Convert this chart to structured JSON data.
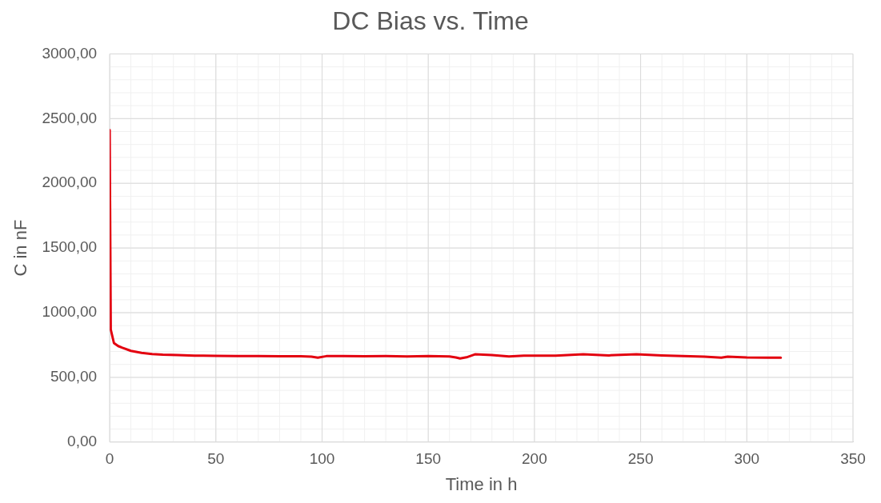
{
  "chart_data": {
    "type": "line",
    "title": "DC Bias vs. Time",
    "xlabel": "Time in h",
    "ylabel": "C in nF",
    "x": [
      0,
      0.5,
      2,
      4,
      6,
      10,
      15,
      20,
      25,
      32,
      40,
      50,
      60,
      70,
      80,
      90,
      95,
      98,
      102,
      110,
      120,
      130,
      140,
      150,
      160,
      163,
      165,
      168,
      172,
      180,
      188,
      195,
      210,
      223,
      235,
      248,
      260,
      270,
      280,
      288,
      291,
      300,
      310,
      316
    ],
    "series": [
      {
        "color": "#e3000f",
        "values": [
          2410,
          870,
          765,
          742,
          729,
          705,
          690,
          680,
          675,
          672,
          668,
          666,
          665,
          664,
          663,
          663,
          660,
          652,
          664,
          664,
          663,
          664,
          662,
          664,
          662,
          654,
          646,
          655,
          678,
          672,
          662,
          668,
          668,
          678,
          670,
          678,
          670,
          665,
          660,
          652,
          660,
          654,
          652,
          652
        ]
      }
    ],
    "xlim": [
      0,
      350
    ],
    "xticks": [
      0,
      50,
      100,
      150,
      200,
      250,
      300,
      350
    ],
    "ylim": [
      0,
      3000
    ],
    "yticks": [
      {
        "value": 0,
        "label": "0,00"
      },
      {
        "value": 500,
        "label": "500,00"
      },
      {
        "value": 1000,
        "label": "1000,00"
      },
      {
        "value": 1500,
        "label": "1500,00"
      },
      {
        "value": 2000,
        "label": "2000,00"
      },
      {
        "value": 2500,
        "label": "2500,00"
      },
      {
        "value": 3000,
        "label": "3000,00"
      }
    ],
    "grid": true,
    "marker": "none",
    "line_style": "solid"
  }
}
